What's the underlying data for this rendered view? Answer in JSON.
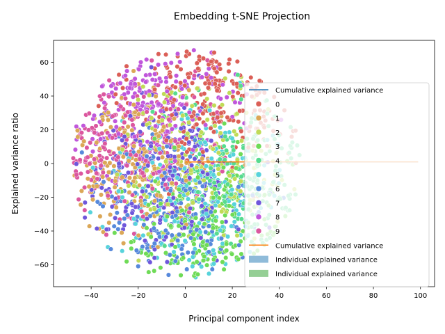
{
  "chart_data": {
    "type": "scatter",
    "title": "Embedding t-SNE Projection",
    "xlabel": "Principal component index",
    "ylabel": "Explained variance ratio",
    "xlim": [
      -56,
      106
    ],
    "ylim": [
      -73,
      73
    ],
    "xticks": [
      -40,
      -20,
      0,
      20,
      40,
      60,
      80,
      100
    ],
    "yticks": [
      -60,
      -40,
      -20,
      0,
      20,
      40,
      60
    ],
    "grid": false,
    "legend_position": "center-right",
    "scatter_cloud": {
      "center": [
        0,
        0
      ],
      "radius_x": 49,
      "radius_y": 68,
      "points_per_class": 230
    },
    "classes": [
      {
        "label": "0",
        "color": "#db5f57",
        "centroid": [
          14,
          44
        ]
      },
      {
        "label": "1",
        "color": "#dba757",
        "centroid": [
          -22,
          2
        ]
      },
      {
        "label": "2",
        "color": "#c0db57",
        "centroid": [
          8,
          2
        ]
      },
      {
        "label": "3",
        "color": "#6fdb57",
        "centroid": [
          10,
          -44
        ]
      },
      {
        "label": "4",
        "color": "#57db8f",
        "centroid": [
          26,
          -10
        ]
      },
      {
        "label": "5",
        "color": "#57d3db",
        "centroid": [
          8,
          -18
        ]
      },
      {
        "label": "6",
        "color": "#5789db",
        "centroid": [
          -6,
          -28
        ]
      },
      {
        "label": "7",
        "color": "#6f57db",
        "centroid": [
          -12,
          -10
        ]
      },
      {
        "label": "8",
        "color": "#c057db",
        "centroid": [
          -16,
          36
        ]
      },
      {
        "label": "9",
        "color": "#db579f",
        "centroid": [
          -30,
          12
        ]
      }
    ],
    "lines": [
      {
        "name": "Cumulative explained variance",
        "color": "#1f77b4",
        "x": [
          0,
          99
        ],
        "y": [
          0.9,
          1.0
        ]
      },
      {
        "name": "Cumulative explained variance",
        "color": "#ff7f0e",
        "x": [
          0,
          99
        ],
        "y": [
          0.95,
          1.0
        ]
      }
    ],
    "bars": [
      {
        "name": "Individual explained variance",
        "color": "#1f77b4"
      },
      {
        "name": "Individual explained variance",
        "color": "#2ca02c"
      }
    ],
    "legend": [
      {
        "kind": "line",
        "label": "Cumulative explained variance",
        "color": "#1f77b4"
      },
      {
        "kind": "marker",
        "label": "0",
        "color": "#db5f57"
      },
      {
        "kind": "marker",
        "label": "1",
        "color": "#dba757"
      },
      {
        "kind": "marker",
        "label": "2",
        "color": "#c0db57"
      },
      {
        "kind": "marker",
        "label": "3",
        "color": "#6fdb57"
      },
      {
        "kind": "marker",
        "label": "4",
        "color": "#57db8f"
      },
      {
        "kind": "marker",
        "label": "5",
        "color": "#57d3db"
      },
      {
        "kind": "marker",
        "label": "6",
        "color": "#5789db"
      },
      {
        "kind": "marker",
        "label": "7",
        "color": "#6f57db"
      },
      {
        "kind": "marker",
        "label": "8",
        "color": "#c057db"
      },
      {
        "kind": "marker",
        "label": "9",
        "color": "#db579f"
      },
      {
        "kind": "line",
        "label": "Cumulative explained variance",
        "color": "#ff7f0e"
      },
      {
        "kind": "patch",
        "label": "Individual explained variance",
        "color": "#1f77b4"
      },
      {
        "kind": "patch",
        "label": "Individual explained variance",
        "color": "#2ca02c"
      }
    ]
  }
}
